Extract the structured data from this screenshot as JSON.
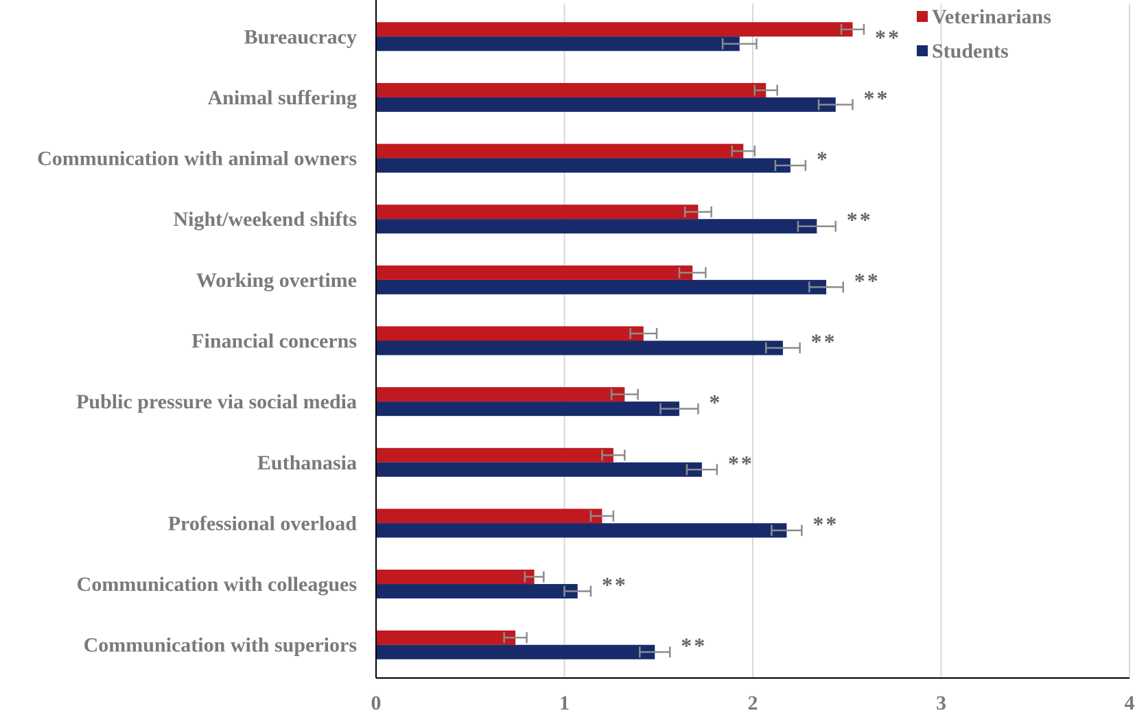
{
  "chart_data": {
    "type": "bar",
    "orientation": "horizontal",
    "title": "",
    "xlabel": "",
    "ylabel": "",
    "xlim": [
      0,
      4
    ],
    "xticks": [
      "0",
      "1",
      "2",
      "3",
      "4"
    ],
    "grid": true,
    "legend_position": "top-right",
    "categories": [
      "Bureaucracy",
      "Animal suffering",
      "Communication with animal owners",
      "Night/weekend shifts",
      "Working overtime",
      "Financial concerns",
      "Public pressure via social media",
      "Euthanasia",
      "Professional overload",
      "Communication with colleagues",
      "Communication with superiors"
    ],
    "series": [
      {
        "name": "Veterinarians",
        "color": "#c0191f",
        "values": [
          2.53,
          2.07,
          1.95,
          1.71,
          1.68,
          1.42,
          1.32,
          1.26,
          1.2,
          0.84,
          0.74
        ],
        "errors": [
          0.06,
          0.06,
          0.06,
          0.07,
          0.07,
          0.07,
          0.07,
          0.06,
          0.06,
          0.05,
          0.06
        ]
      },
      {
        "name": "Students",
        "color": "#172b6b",
        "values": [
          1.93,
          2.44,
          2.2,
          2.34,
          2.39,
          2.16,
          1.61,
          1.73,
          2.18,
          1.07,
          1.48
        ],
        "errors": [
          0.09,
          0.09,
          0.08,
          0.1,
          0.09,
          0.09,
          0.1,
          0.08,
          0.08,
          0.07,
          0.08
        ]
      }
    ],
    "significance": [
      "**",
      "**",
      "*",
      "**",
      "**",
      "**",
      "*",
      "**",
      "**",
      "**",
      "**"
    ]
  }
}
